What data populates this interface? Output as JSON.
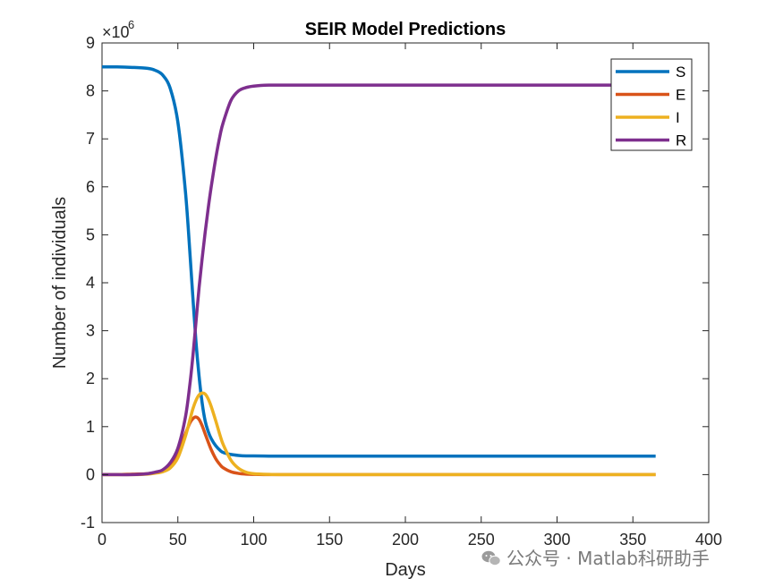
{
  "chart_data": {
    "type": "line",
    "title": "SEIR Model Predictions",
    "xlabel": "Days",
    "ylabel": "Number of individuals",
    "y_exponent_label": "×10",
    "y_exponent": "6",
    "xlim": [
      0,
      400
    ],
    "ylim": [
      -1,
      9
    ],
    "xticks": [
      "0",
      "50",
      "100",
      "150",
      "200",
      "250",
      "300",
      "350",
      "400"
    ],
    "yticks": [
      "-1",
      "0",
      "1",
      "2",
      "3",
      "4",
      "5",
      "6",
      "7",
      "8",
      "9"
    ],
    "grid": false,
    "legend_position": "top-right",
    "x": [
      0,
      10,
      20,
      30,
      35,
      40,
      45,
      50,
      55,
      58,
      60,
      62,
      64,
      66,
      68,
      70,
      72,
      75,
      78,
      80,
      85,
      90,
      95,
      100,
      110,
      120,
      130,
      150,
      200,
      250,
      300,
      365
    ],
    "series": [
      {
        "name": "S",
        "color": "#0072BD",
        "values": [
          8.5,
          8.5,
          8.49,
          8.47,
          8.43,
          8.33,
          8.05,
          7.35,
          5.9,
          4.6,
          3.65,
          2.75,
          2.05,
          1.5,
          1.12,
          0.9,
          0.75,
          0.6,
          0.5,
          0.46,
          0.42,
          0.4,
          0.39,
          0.39,
          0.385,
          0.385,
          0.385,
          0.385,
          0.385,
          0.385,
          0.385,
          0.385
        ]
      },
      {
        "name": "E",
        "color": "#D95319",
        "values": [
          0.0,
          0.0,
          0.01,
          0.02,
          0.04,
          0.08,
          0.2,
          0.45,
          0.85,
          1.08,
          1.17,
          1.2,
          1.15,
          1.02,
          0.85,
          0.68,
          0.52,
          0.33,
          0.2,
          0.14,
          0.06,
          0.025,
          0.01,
          0.005,
          0.0,
          0.0,
          0.0,
          0.0,
          0.0,
          0.0,
          0.0,
          0.0
        ]
      },
      {
        "name": "I",
        "color": "#EDB120",
        "values": [
          0.0,
          0.0,
          0.0,
          0.01,
          0.03,
          0.06,
          0.14,
          0.35,
          0.8,
          1.15,
          1.38,
          1.55,
          1.66,
          1.7,
          1.68,
          1.58,
          1.42,
          1.12,
          0.8,
          0.62,
          0.3,
          0.13,
          0.05,
          0.02,
          0.005,
          0.0,
          0.0,
          0.0,
          0.0,
          0.0,
          0.0,
          0.0
        ]
      },
      {
        "name": "R",
        "color": "#7E2F8E",
        "values": [
          0.0,
          0.0,
          0.0,
          0.02,
          0.05,
          0.1,
          0.25,
          0.55,
          1.2,
          1.9,
          2.5,
          3.2,
          3.9,
          4.5,
          5.05,
          5.55,
          6.0,
          6.6,
          7.1,
          7.35,
          7.8,
          8.0,
          8.07,
          8.1,
          8.12,
          8.12,
          8.12,
          8.12,
          8.12,
          8.12,
          8.12,
          8.12
        ]
      }
    ]
  },
  "watermark": {
    "text": "公众号 · Matlab科研助手"
  }
}
